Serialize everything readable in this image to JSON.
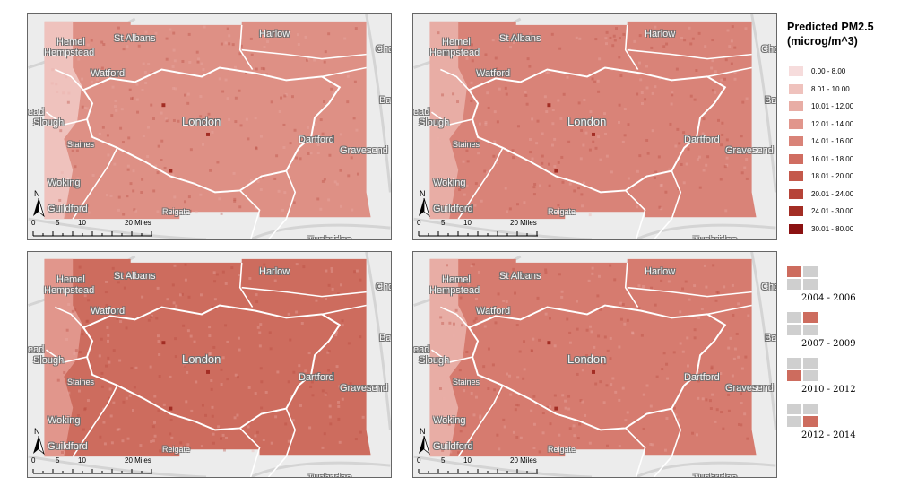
{
  "legend": {
    "title_line1": "Predicted PM2.5",
    "title_line2": "(microg/m^3)",
    "classes": [
      {
        "label": "0.00 - 8.00",
        "color": "#f6dcdc"
      },
      {
        "label": "8.01 - 10.00",
        "color": "#efc2bd"
      },
      {
        "label": "10.01 - 12.00",
        "color": "#e8ada5"
      },
      {
        "label": "12.01 - 14.00",
        "color": "#e1968c"
      },
      {
        "label": "14.01 - 16.00",
        "color": "#d98378"
      },
      {
        "label": "16.01 - 18.00",
        "color": "#d06d61"
      },
      {
        "label": "18.01 - 20.00",
        "color": "#c4594b"
      },
      {
        "label": "20.01 - 24.00",
        "color": "#b64438"
      },
      {
        "label": "24.01 - 30.00",
        "color": "#a32d24"
      },
      {
        "label": "30.01 - 80.00",
        "color": "#8b1111"
      }
    ]
  },
  "periods": [
    {
      "label": "2004 - 2006",
      "position": "top-left"
    },
    {
      "label": "2007 - 2009",
      "position": "top-right"
    },
    {
      "label": "2010 - 2012",
      "position": "bottom-left"
    },
    {
      "label": "2012 - 2014",
      "position": "bottom-right"
    }
  ],
  "maps": [
    {
      "period": "2004 - 2006",
      "fill": "#de9085",
      "west_fill": "#efc2bd"
    },
    {
      "period": "2007 - 2009",
      "fill": "#d98378",
      "west_fill": "#e8ada5"
    },
    {
      "period": "2010 - 2012",
      "fill": "#cd6c5e",
      "west_fill": "#e1968c"
    },
    {
      "period": "2012 - 2014",
      "fill": "#d67b6f",
      "west_fill": "#e8ada5"
    }
  ],
  "place_labels": {
    "hemel": "Hemel",
    "hempstead": "Hempstead",
    "st_albans": "St Albans",
    "harlow": "Harlow",
    "cho": "Cho",
    "watford": "Watford",
    "london": "London",
    "bas": "Bas",
    "slough": "Slough",
    "ead": "ead",
    "staines": "Staines",
    "dartford": "Dartford",
    "gravesend": "Gravesend",
    "woking": "Woking",
    "guildford": "Guildford",
    "reigate": "Reigate",
    "tunbridge": "Tunbridge"
  },
  "north_arrow": {
    "letter": "N"
  },
  "scale": {
    "ticks": [
      "0",
      "5",
      "10",
      "20 Miles"
    ]
  }
}
